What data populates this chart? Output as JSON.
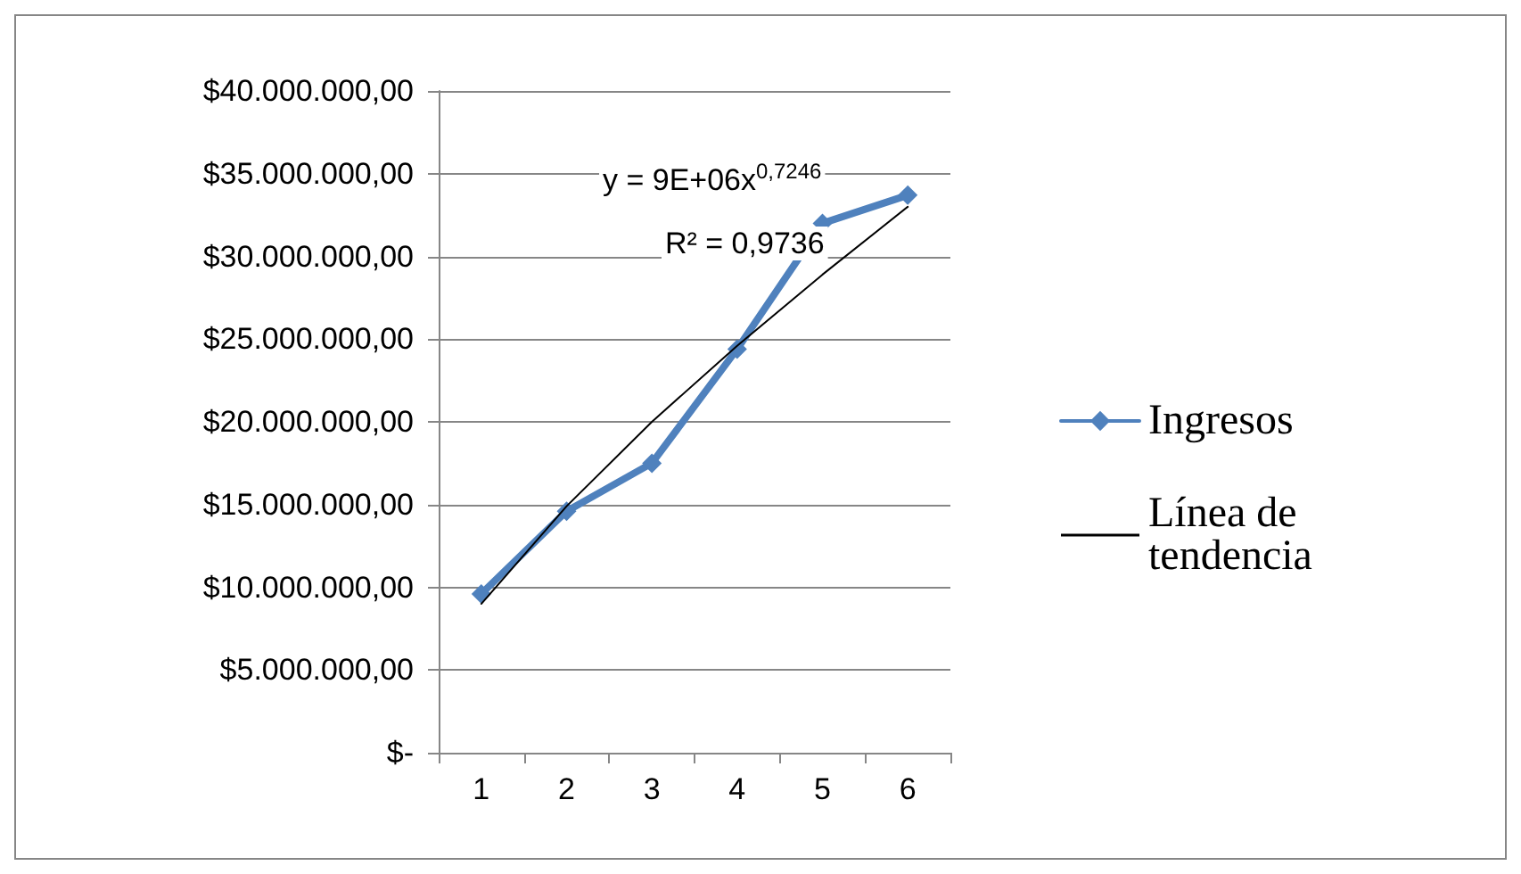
{
  "chart_data": {
    "type": "line",
    "categories": [
      "1",
      "2",
      "3",
      "4",
      "5",
      "6"
    ],
    "series": [
      {
        "name": "Ingresos",
        "color": "#4f81bd",
        "marker": "diamond",
        "values": [
          9600000,
          14600000,
          17500000,
          24400000,
          32000000,
          33700000
        ]
      },
      {
        "name": "Línea de tendencia",
        "color": "#000000",
        "marker": "none",
        "values": [
          9000000,
          14900000,
          20000000,
          24600000,
          28900000,
          33000000
        ]
      }
    ],
    "ylim": [
      0,
      40000000
    ],
    "yticks": [
      {
        "value": 0,
        "label": "$-"
      },
      {
        "value": 5000000,
        "label": "$5.000.000,00"
      },
      {
        "value": 10000000,
        "label": "$10.000.000,00"
      },
      {
        "value": 15000000,
        "label": "$15.000.000,00"
      },
      {
        "value": 20000000,
        "label": "$20.000.000,00"
      },
      {
        "value": 25000000,
        "label": "$25.000.000,00"
      },
      {
        "value": 30000000,
        "label": "$30.000.000,00"
      },
      {
        "value": 35000000,
        "label": "$35.000.000,00"
      },
      {
        "value": 40000000,
        "label": "$40.000.000,00"
      }
    ],
    "annotations": [
      "y = 9E+06x$^{0,7246}$",
      "R² = 0,9736"
    ],
    "grid": "y",
    "legend": "right"
  }
}
